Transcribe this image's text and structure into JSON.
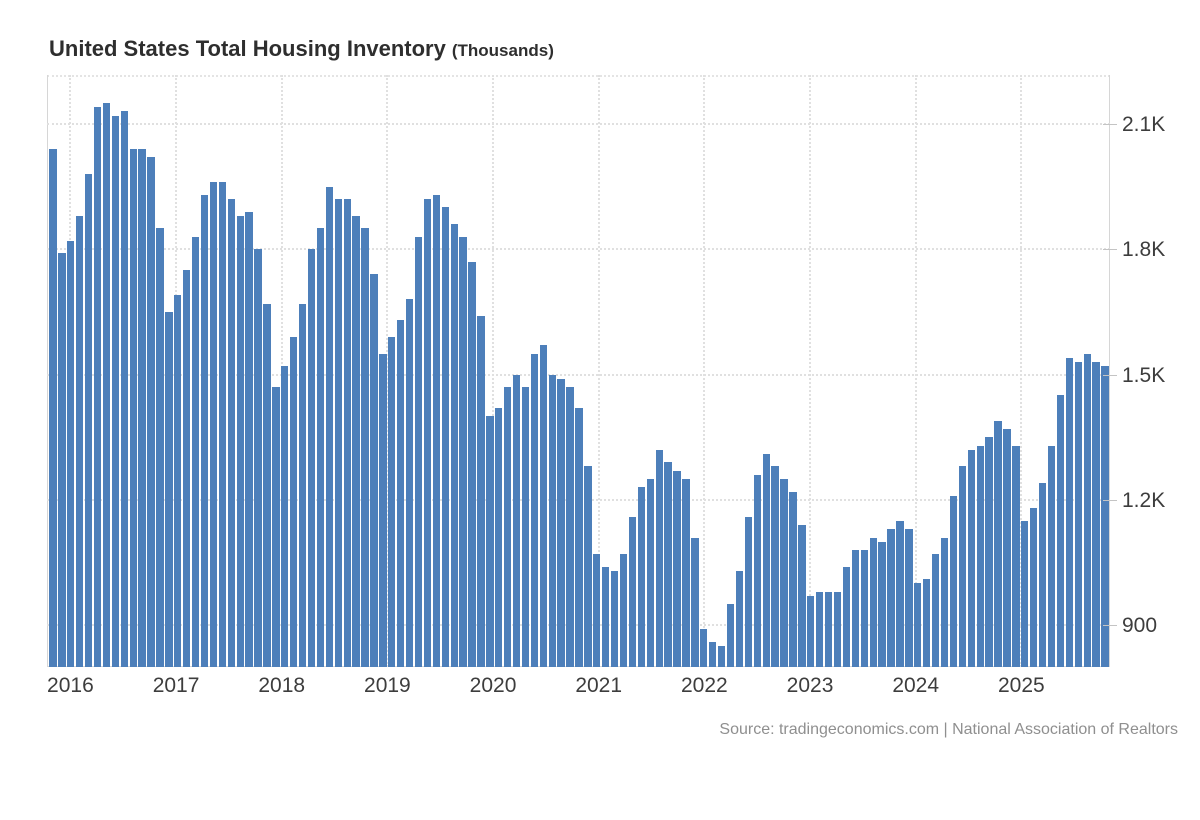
{
  "title": {
    "main": "United States Total Housing Inventory",
    "unit": "(Thousands)"
  },
  "source": "Source: tradingeconomics.com | National Association of Realtors",
  "colors": {
    "bar": "#4d7fba",
    "grid": "#e0e0e0",
    "axis": "#d6d6d6",
    "tick_label": "#3d3d3d",
    "title_text": "#2e2e2e",
    "source_text": "#8f8f8f",
    "background": "#ffffff"
  },
  "chart_data": {
    "type": "bar",
    "title": "United States Total Housing Inventory",
    "unit_label": "(Thousands)",
    "frequency": "monthly",
    "start_month": "2015-11",
    "end_month": "2025-09",
    "grid": true,
    "legend_position": "none",
    "xlabel": "",
    "ylabel": "Thousands",
    "ylim": [
      800,
      2217
    ],
    "y_tick_values": [
      900,
      1200,
      1500,
      1800,
      2100
    ],
    "y_tick_labels": [
      "900",
      "1.2K",
      "1.5K",
      "1.8K",
      "2.1K"
    ],
    "x_tick_labels": [
      "2016",
      "2017",
      "2018",
      "2019",
      "2020",
      "2021",
      "2022",
      "2023",
      "2024",
      "2025"
    ],
    "values": [
      2040,
      1790,
      1820,
      1880,
      1980,
      2140,
      2150,
      2120,
      2130,
      2040,
      2040,
      2020,
      1850,
      1650,
      1690,
      1750,
      1830,
      1930,
      1960,
      1960,
      1920,
      1880,
      1890,
      1800,
      1670,
      1470,
      1520,
      1590,
      1670,
      1800,
      1850,
      1950,
      1920,
      1920,
      1880,
      1850,
      1740,
      1550,
      1590,
      1630,
      1680,
      1830,
      1920,
      1930,
      1900,
      1860,
      1830,
      1770,
      1640,
      1400,
      1420,
      1470,
      1500,
      1470,
      1550,
      1570,
      1500,
      1490,
      1470,
      1420,
      1280,
      1070,
      1040,
      1030,
      1070,
      1160,
      1230,
      1250,
      1320,
      1290,
      1270,
      1250,
      1110,
      890,
      860,
      850,
      950,
      1030,
      1160,
      1260,
      1310,
      1280,
      1250,
      1220,
      1140,
      970,
      980,
      980,
      980,
      1040,
      1080,
      1080,
      1110,
      1100,
      1130,
      1150,
      1130,
      1000,
      1010,
      1070,
      1110,
      1210,
      1280,
      1320,
      1330,
      1350,
      1390,
      1370,
      1330,
      1150,
      1180,
      1240,
      1330,
      1450,
      1540,
      1530,
      1550,
      1530,
      1520
    ]
  }
}
